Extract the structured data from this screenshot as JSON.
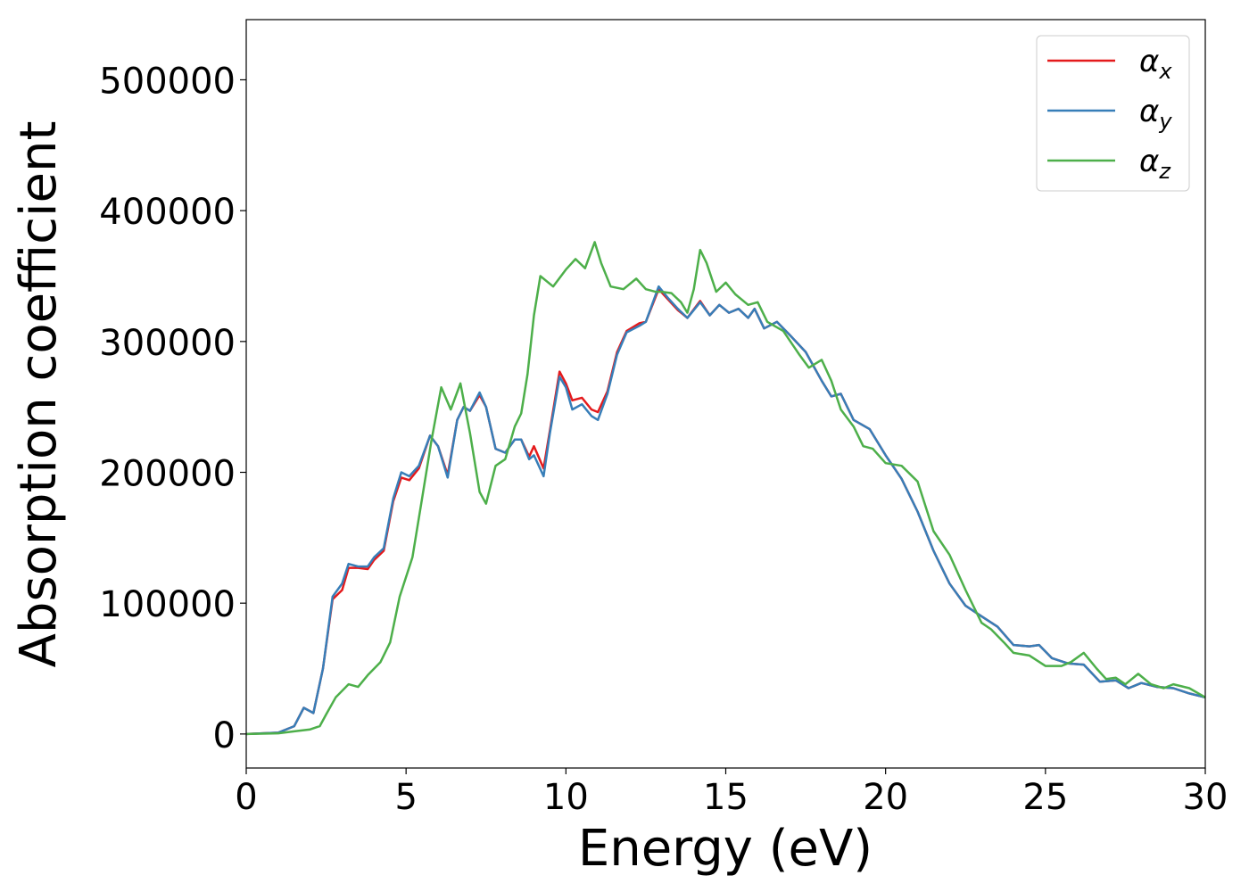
{
  "chart_data": {
    "type": "line",
    "xlabel": "Energy (eV)",
    "ylabel": "Absorption coefficient",
    "xlim": [
      0,
      30
    ],
    "xticks": [
      0,
      5,
      10,
      15,
      20,
      25,
      30
    ],
    "ylim": [
      -26000,
      546000
    ],
    "yticks": [
      0,
      100000,
      200000,
      300000,
      400000,
      500000
    ],
    "legend": "upper right",
    "series": [
      {
        "name": "αx",
        "color": "#e41a1c",
        "x": [
          0,
          1,
          1.5,
          1.8,
          2.1,
          2.4,
          2.7,
          3.0,
          3.2,
          3.5,
          3.8,
          4.0,
          4.3,
          4.6,
          4.85,
          5.1,
          5.4,
          5.75,
          6.0,
          6.3,
          6.6,
          6.8,
          7.0,
          7.3,
          7.5,
          7.8,
          8.1,
          8.4,
          8.6,
          8.85,
          9.0,
          9.3,
          9.5,
          9.8,
          10.0,
          10.2,
          10.5,
          10.8,
          11.0,
          11.3,
          11.6,
          11.9,
          12.3,
          12.5,
          12.9,
          13.2,
          13.5,
          13.8,
          14.2,
          14.5,
          14.8,
          15.1,
          15.4,
          15.7,
          15.9,
          16.2,
          16.6,
          17.0,
          17.5,
          18.0,
          18.3,
          18.6,
          19.0,
          19.5,
          20.0,
          20.5,
          21.0,
          21.5,
          22.0,
          22.5,
          23.0,
          23.5,
          24.0,
          24.5,
          24.8,
          25.2,
          25.7,
          26.2,
          26.7,
          27.2,
          27.6,
          28.0,
          28.5,
          29.0,
          29.5,
          30
        ],
        "values": [
          0,
          1000,
          6000,
          20000,
          16000,
          50000,
          103000,
          110000,
          127000,
          127000,
          126000,
          133000,
          140000,
          178000,
          196000,
          194000,
          203000,
          228000,
          220000,
          198000,
          240000,
          250000,
          247000,
          259000,
          250000,
          218000,
          215000,
          225000,
          225000,
          212000,
          220000,
          203000,
          232000,
          277000,
          268000,
          255000,
          257000,
          248000,
          246000,
          262000,
          292000,
          308000,
          314000,
          315000,
          340000,
          332000,
          324000,
          318000,
          331000,
          320000,
          328000,
          322000,
          325000,
          318000,
          325000,
          310000,
          315000,
          305000,
          292000,
          270000,
          258000,
          260000,
          240000,
          233000,
          213000,
          195000,
          170000,
          140000,
          115000,
          98000,
          90000,
          82000,
          68000,
          67000,
          68000,
          58000,
          54000,
          53000,
          40000,
          41000,
          35000,
          39000,
          36000,
          35000,
          31000,
          28000
        ]
      },
      {
        "name": "αy",
        "color": "#377eb8",
        "x": [
          0,
          1,
          1.5,
          1.8,
          2.1,
          2.4,
          2.7,
          3.0,
          3.2,
          3.5,
          3.8,
          4.0,
          4.3,
          4.6,
          4.85,
          5.1,
          5.4,
          5.75,
          6.0,
          6.3,
          6.6,
          6.8,
          7.0,
          7.3,
          7.5,
          7.8,
          8.1,
          8.4,
          8.6,
          8.85,
          9.0,
          9.3,
          9.5,
          9.8,
          10.0,
          10.2,
          10.5,
          10.8,
          11.0,
          11.3,
          11.6,
          11.9,
          12.3,
          12.5,
          12.9,
          13.2,
          13.5,
          13.8,
          14.2,
          14.5,
          14.8,
          15.1,
          15.4,
          15.7,
          15.9,
          16.2,
          16.6,
          17.0,
          17.5,
          18.0,
          18.3,
          18.6,
          19.0,
          19.5,
          20.0,
          20.5,
          21.0,
          21.5,
          22.0,
          22.5,
          23.0,
          23.5,
          24.0,
          24.5,
          24.8,
          25.2,
          25.7,
          26.2,
          26.7,
          27.2,
          27.6,
          28.0,
          28.5,
          29.0,
          29.5,
          30
        ],
        "values": [
          0,
          1000,
          6000,
          20000,
          16000,
          50000,
          105000,
          115000,
          130000,
          128000,
          128000,
          135000,
          142000,
          180000,
          200000,
          197000,
          205000,
          228000,
          220000,
          196000,
          240000,
          250000,
          247000,
          261000,
          250000,
          218000,
          215000,
          225000,
          225000,
          210000,
          213000,
          197000,
          230000,
          273000,
          265000,
          248000,
          252000,
          243000,
          240000,
          260000,
          290000,
          307000,
          312000,
          315000,
          342000,
          333000,
          325000,
          318000,
          330000,
          320000,
          328000,
          322000,
          325000,
          318000,
          325000,
          310000,
          315000,
          305000,
          292000,
          270000,
          258000,
          260000,
          240000,
          233000,
          213000,
          195000,
          170000,
          140000,
          115000,
          98000,
          90000,
          82000,
          68000,
          67000,
          68000,
          58000,
          54000,
          53000,
          40000,
          41000,
          35000,
          39000,
          36000,
          35000,
          31000,
          28000
        ]
      },
      {
        "name": "αz",
        "color": "#4daf4a",
        "x": [
          0,
          1,
          1.5,
          2.0,
          2.3,
          2.5,
          2.8,
          3.2,
          3.5,
          3.8,
          4.2,
          4.5,
          4.8,
          5.2,
          5.5,
          5.8,
          6.1,
          6.4,
          6.7,
          7.0,
          7.3,
          7.5,
          7.8,
          8.1,
          8.4,
          8.6,
          8.8,
          9.0,
          9.2,
          9.6,
          10.0,
          10.3,
          10.6,
          10.9,
          11.1,
          11.4,
          11.8,
          12.2,
          12.5,
          12.8,
          13.0,
          13.3,
          13.6,
          13.8,
          14.0,
          14.2,
          14.4,
          14.7,
          15.0,
          15.3,
          15.7,
          16.0,
          16.3,
          16.8,
          17.3,
          17.6,
          18.0,
          18.3,
          18.6,
          19.0,
          19.3,
          19.6,
          20.0,
          20.5,
          21.0,
          21.5,
          22.0,
          22.5,
          23.0,
          23.3,
          23.7,
          24.0,
          24.5,
          25.0,
          25.5,
          25.8,
          26.2,
          26.6,
          26.9,
          27.2,
          27.5,
          27.9,
          28.3,
          28.7,
          29.0,
          29.5,
          30
        ],
        "values": [
          0,
          500,
          2000,
          3500,
          6000,
          15000,
          28000,
          38000,
          36000,
          45000,
          55000,
          70000,
          105000,
          135000,
          180000,
          225000,
          265000,
          248000,
          268000,
          230000,
          185000,
          176000,
          205000,
          210000,
          235000,
          245000,
          275000,
          320000,
          350000,
          342000,
          355000,
          363000,
          356000,
          376000,
          360000,
          342000,
          340000,
          348000,
          340000,
          338000,
          338000,
          337000,
          330000,
          322000,
          340000,
          370000,
          360000,
          338000,
          345000,
          336000,
          328000,
          330000,
          315000,
          308000,
          290000,
          280000,
          286000,
          270000,
          248000,
          235000,
          220000,
          218000,
          207000,
          205000,
          193000,
          155000,
          137000,
          110000,
          85000,
          80000,
          70000,
          62000,
          60000,
          52000,
          52000,
          55000,
          62000,
          50000,
          42000,
          43000,
          38000,
          46000,
          38000,
          35000,
          38000,
          35000,
          28000
        ]
      }
    ]
  }
}
